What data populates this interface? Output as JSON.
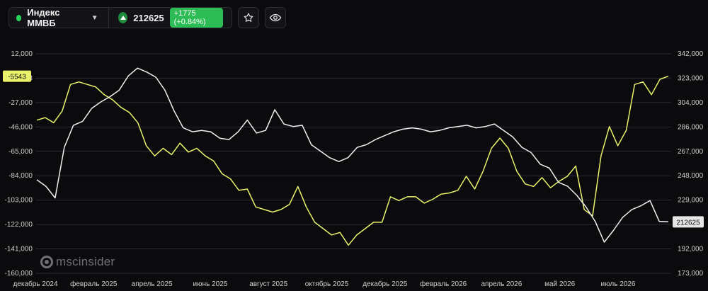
{
  "header": {
    "instrument_name": "Индекс ММВБ",
    "price": "212625",
    "change": "+1775 (+0.84%)",
    "colors": {
      "live_dot": "#2ad35a",
      "up": "#2dbb55"
    },
    "icons": [
      "chevron-down-icon",
      "up-arrow-icon",
      "star-icon",
      "eye-icon"
    ]
  },
  "watermark": {
    "text": "mscinsider"
  },
  "chart_data": {
    "type": "line",
    "grid": true,
    "x_labels": [
      "декабрь 2024",
      "февраль 2025",
      "апрель 2025",
      "июнь 2025",
      "август 2025",
      "октябрь 2025",
      "декабрь 2025",
      "февраль 2026",
      "апрель 2026",
      "май 2026",
      "июль 2026"
    ],
    "left_axis": {
      "ticks": [
        "12,000",
        "-8",
        "-27,000",
        "-46,000",
        "-65,000",
        "-84,000",
        "-103,000",
        "-122,000",
        "-141,000",
        "-160,000"
      ],
      "range": [
        -160000,
        12000
      ]
    },
    "right_axis": {
      "ticks": [
        "342,000",
        "323,000",
        "304,000",
        "286,000",
        "267,000",
        "248,000",
        "229,000",
        "210,000",
        "192,000",
        "173,000"
      ],
      "range": [
        173000,
        342000
      ]
    },
    "series": [
      {
        "axis": "left",
        "color": "#e9f26a",
        "last_label": "-5543",
        "values": [
          -40000,
          -38000,
          -42000,
          -33000,
          -12000,
          -10000,
          -12000,
          -14000,
          -20000,
          -24000,
          -30000,
          -34000,
          -42000,
          -60000,
          -68000,
          -62000,
          -67000,
          -58000,
          -65000,
          -62000,
          -68000,
          -72000,
          -82000,
          -86000,
          -95000,
          -94000,
          -108000,
          -110000,
          -112000,
          -110000,
          -106000,
          -92000,
          -108000,
          -120000,
          -125000,
          -130000,
          -128000,
          -138000,
          -130000,
          -125000,
          -120000,
          -120000,
          -100000,
          -103000,
          -100000,
          -100000,
          -105000,
          -102000,
          -98000,
          -97000,
          -95000,
          -84000,
          -94000,
          -80000,
          -62000,
          -54000,
          -62000,
          -80000,
          -90000,
          -92000,
          -85000,
          -93000,
          -88000,
          -84000,
          -76000,
          -110000,
          -115000,
          -68000,
          -45000,
          -60000,
          -48000,
          -12000,
          -10000,
          -20000,
          -8000,
          -5543
        ]
      },
      {
        "axis": "right",
        "color": "#f0f0f0",
        "last_label": "212625",
        "values": [
          245000,
          240000,
          231000,
          270000,
          287000,
          290000,
          300000,
          305000,
          309000,
          314000,
          325000,
          331000,
          328000,
          324000,
          314000,
          298000,
          285000,
          282000,
          283000,
          282000,
          277000,
          276000,
          282000,
          291000,
          281000,
          283000,
          299000,
          288000,
          286000,
          287000,
          272000,
          267000,
          262000,
          259000,
          262000,
          270000,
          272000,
          276000,
          279000,
          282000,
          284000,
          285000,
          284000,
          282000,
          283000,
          285000,
          286000,
          287000,
          285000,
          286000,
          288000,
          283000,
          278000,
          270000,
          266000,
          257000,
          254000,
          243000,
          240000,
          233000,
          224000,
          213000,
          197000,
          206000,
          216000,
          222000,
          225000,
          229000,
          213000,
          212625
        ]
      }
    ]
  }
}
